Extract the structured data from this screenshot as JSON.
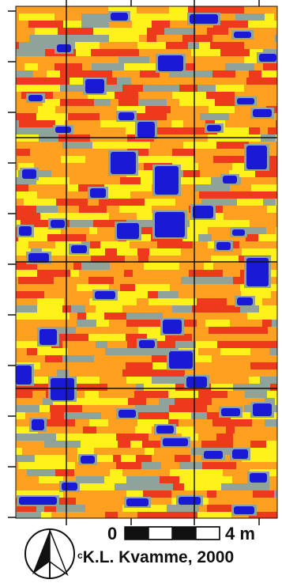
{
  "scale_bar": {
    "min_label": "0",
    "max_label": "4 m"
  },
  "credit": {
    "symbol": "c",
    "text": "K.L. Kvamme, 2000"
  },
  "palette": {
    "low": "#1a1ad6",
    "mid_low": "#8fa39a",
    "mid": "#fff21a",
    "mid_high": "#ffa020",
    "high": "#ee3a1c",
    "grid": "#111111"
  },
  "icons": {
    "north_arrow": "north-arrow-icon"
  }
}
